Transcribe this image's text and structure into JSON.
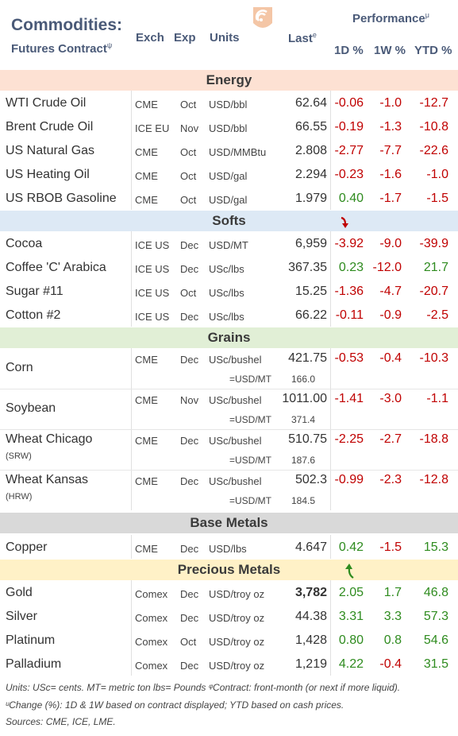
{
  "header": {
    "title": "Commodities:",
    "subtitle": "Futures Contract",
    "subtitle_mark": "ψ",
    "col_exch": "Exch",
    "col_exp": "Exp",
    "col_units": "Units",
    "col_last": "Last",
    "last_mark": "e",
    "performance": "Performance",
    "performance_mark": "μ",
    "col_1d": "1D %",
    "col_1w": "1W %",
    "col_ytd": "YTD %"
  },
  "sections": {
    "energy": "Energy",
    "softs": "Softs",
    "grains": "Grains",
    "base": "Base Metals",
    "precious": "Precious Metals"
  },
  "colors": {
    "energy_bg": "#fde1d3",
    "softs_bg": "#dde9f5",
    "grains_bg": "#e1efd6",
    "base_bg": "#d9d9d9",
    "precious_bg": "#fff1c7",
    "negative": "#c00000",
    "positive": "#2e8b1e"
  },
  "energy": [
    {
      "name": "WTI Crude Oil",
      "exch": "CME",
      "exp": "Oct",
      "units": "USD/bbl",
      "last": "62.64",
      "d1": "-0.06",
      "w1": "-1.0",
      "ytd": "-12.7"
    },
    {
      "name": "Brent Crude Oil",
      "exch": "ICE EU",
      "exp": "Nov",
      "units": "USD/bbl",
      "last": "66.55",
      "d1": "-0.19",
      "w1": "-1.3",
      "ytd": "-10.8"
    },
    {
      "name": "US Natural Gas",
      "exch": "CME",
      "exp": "Oct",
      "units": "USD/MMBtu",
      "last": "2.808",
      "d1": "-2.77",
      "w1": "-7.7",
      "ytd": "-22.6"
    },
    {
      "name": "US Heating Oil",
      "exch": "CME",
      "exp": "Oct",
      "units": "USD/gal",
      "last": "2.294",
      "d1": "-0.23",
      "w1": "-1.6",
      "ytd": "-1.0"
    },
    {
      "name": "US RBOB Gasoline",
      "exch": "CME",
      "exp": "Oct",
      "units": "USD/gal",
      "last": "1.979",
      "d1": "0.40",
      "w1": "-1.7",
      "ytd": "-1.5"
    }
  ],
  "softs": [
    {
      "name": "Cocoa",
      "exch": "ICE US",
      "exp": "Dec",
      "units": "USD/MT",
      "last": "6,959",
      "d1": "-3.92",
      "w1": "-9.0",
      "ytd": "-39.9"
    },
    {
      "name": "Coffee 'C' Arabica",
      "exch": "ICE US",
      "exp": "Dec",
      "units": "USc/lbs",
      "last": "367.35",
      "d1": "0.23",
      "w1": "-12.0",
      "ytd": "21.7"
    },
    {
      "name": "Sugar #11",
      "exch": "ICE US",
      "exp": "Oct",
      "units": "USc/lbs",
      "last": "15.25",
      "d1": "-1.36",
      "w1": "-4.7",
      "ytd": "-20.7"
    },
    {
      "name": "Cotton #2",
      "exch": "ICE US",
      "exp": "Dec",
      "units": "USc/lbs",
      "last": "66.22",
      "d1": "-0.11",
      "w1": "-0.9",
      "ytd": "-2.5"
    }
  ],
  "grains": [
    {
      "name": "Corn",
      "sub": "",
      "exch": "CME",
      "exp": "Dec",
      "units": "USc/bushel",
      "units2": "=USD/MT",
      "last": "421.75",
      "last2": "166.0",
      "d1": "-0.53",
      "w1": "-0.4",
      "ytd": "-10.3"
    },
    {
      "name": "Soybean",
      "sub": "",
      "exch": "CME",
      "exp": "Nov",
      "units": "USc/bushel",
      "units2": "=USD/MT",
      "last": "1011.00",
      "last2": "371.4",
      "d1": "-1.41",
      "w1": "-3.0",
      "ytd": "-1.1"
    },
    {
      "name": "Wheat Chicago",
      "sub": "(SRW)",
      "exch": "CME",
      "exp": "Dec",
      "units": "USc/bushel",
      "units2": "=USD/MT",
      "last": "510.75",
      "last2": "187.6",
      "d1": "-2.25",
      "w1": "-2.7",
      "ytd": "-18.8"
    },
    {
      "name": "Wheat Kansas",
      "sub": "(HRW)",
      "exch": "CME",
      "exp": "Dec",
      "units": "USc/bushel",
      "units2": "=USD/MT",
      "last": "502.3",
      "last2": "184.5",
      "d1": "-0.99",
      "w1": "-2.3",
      "ytd": "-12.8"
    }
  ],
  "base": [
    {
      "name": "Copper",
      "exch": "CME",
      "exp": "Dec",
      "units": "USD/lbs",
      "last": "4.647",
      "d1": "0.42",
      "w1": "-1.5",
      "ytd": "15.3"
    }
  ],
  "precious": [
    {
      "name": "Gold",
      "exch": "Comex",
      "exp": "Dec",
      "units": "USD/troy oz",
      "last": "3,782",
      "d1": "2.05",
      "w1": "1.7",
      "ytd": "46.8"
    },
    {
      "name": "Silver",
      "exch": "Comex",
      "exp": "Dec",
      "units": "USD/troy oz",
      "last": "44.38",
      "d1": "3.31",
      "w1": "3.3",
      "ytd": "57.3"
    },
    {
      "name": "Platinum",
      "exch": "Comex",
      "exp": "Oct",
      "units": "USD/troy oz",
      "last": "1,428",
      "d1": "0.80",
      "w1": "0.8",
      "ytd": "54.6"
    },
    {
      "name": "Palladium",
      "exch": "Comex",
      "exp": "Dec",
      "units": "USD/troy oz",
      "last": "1,219",
      "d1": "4.22",
      "w1": "-0.4",
      "ytd": "31.5"
    }
  ],
  "footer": {
    "line1": "Units: USc= cents.   MT= metric ton    lbs= Pounds   ᵠContract: front-month (or next if more liquid).",
    "line2": "ᵘChange (%): 1D & 1W based on contract displayed; YTD based on cash prices.",
    "line3": "Sources: CME, ICE, LME."
  }
}
